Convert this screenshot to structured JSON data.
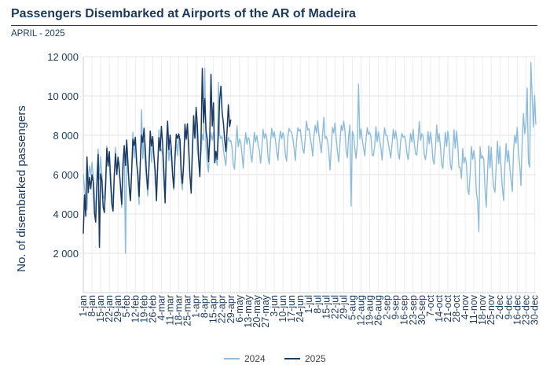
{
  "header": {
    "title": "Passengers Disembarked at Airports of the AR of Madeira",
    "subtitle": "APRIL - 2025"
  },
  "chart_data": {
    "type": "line",
    "title": "Passengers Disembarked at Airports of the AR of Madeira",
    "subtitle": "APRIL - 2025",
    "ylabel": "No. of disembarked passengers",
    "xlabel": "",
    "ylim": [
      0,
      12000
    ],
    "yticks": [
      2000,
      4000,
      6000,
      8000,
      10000,
      12000
    ],
    "ytick_labels": [
      "2 000",
      "4 000",
      "6 000",
      "8 000",
      "10 000",
      "12 000"
    ],
    "xticks": [
      "1-jan",
      "8-jan",
      "15-jan",
      "22-jan",
      "29-jan",
      "5-feb",
      "12-feb",
      "19-feb",
      "26-feb",
      "4-mar",
      "11-mar",
      "18-mar",
      "25-mar",
      "1-apr",
      "8-apr",
      "15-apr",
      "22-apr",
      "29-apr",
      "6-may",
      "13-may",
      "20-may",
      "27-may",
      "3-jun",
      "10-jun",
      "17-jun",
      "24-jun",
      "1-jul",
      "8-jul",
      "15-jul",
      "22-jul",
      "29-jul",
      "5-aug",
      "12-aug",
      "19-aug",
      "26-aug",
      "2-sep",
      "9-sep",
      "16-sep",
      "23-sep",
      "30-sep",
      "7-oct",
      "14-oct",
      "21-oct",
      "28-oct",
      "4-nov",
      "11-nov",
      "18-nov",
      "25-nov",
      "2-dec",
      "9-dec",
      "16-dec",
      "23-dec",
      "30-dec"
    ],
    "xtick_every_days": 7,
    "num_days_axis": 366,
    "grid": true,
    "legend_position": "bottom",
    "series": [
      {
        "name": "2024",
        "color": "#8bbcdb",
        "days": 366,
        "segments": [
          {
            "from": 0,
            "to": 40,
            "start": 5300,
            "end": 6200,
            "amp": 1500
          },
          {
            "from": 40,
            "to": 80,
            "start": 6200,
            "end": 6500,
            "amp": 1700
          },
          {
            "from": 80,
            "to": 92,
            "start": 6500,
            "end": 7200,
            "amp": 1900
          },
          {
            "from": 92,
            "to": 125,
            "start": 7200,
            "end": 7200,
            "amp": 1100
          },
          {
            "from": 125,
            "to": 195,
            "start": 7200,
            "end": 8000,
            "amp": 900
          },
          {
            "from": 195,
            "to": 215,
            "start": 7300,
            "end": 7900,
            "amp": 1100
          },
          {
            "from": 215,
            "to": 270,
            "start": 7600,
            "end": 7500,
            "amp": 800
          },
          {
            "from": 270,
            "to": 305,
            "start": 7500,
            "end": 7100,
            "amp": 1100
          },
          {
            "from": 305,
            "to": 345,
            "start": 6000,
            "end": 6000,
            "amp": 1500
          },
          {
            "from": 345,
            "to": 366,
            "start": 6500,
            "end": 8500,
            "amp": 1900
          }
        ],
        "peaks": [
          {
            "day": 98,
            "value": 11400
          },
          {
            "day": 109,
            "value": 10700
          },
          {
            "day": 222,
            "value": 10600
          },
          {
            "day": 216,
            "value": 4400
          },
          {
            "day": 319,
            "value": 3100
          },
          {
            "day": 361,
            "value": 11700
          },
          {
            "day": 358,
            "value": 10400
          },
          {
            "day": 366,
            "value": 6600
          },
          {
            "day": 47,
            "value": 9300
          },
          {
            "day": 34,
            "value": 2000
          }
        ]
      },
      {
        "name": "2025",
        "color": "#1b3a63",
        "days": 120,
        "segments": [
          {
            "from": 0,
            "to": 40,
            "start": 4500,
            "end": 6300,
            "amp": 1700
          },
          {
            "from": 40,
            "to": 80,
            "start": 6500,
            "end": 6800,
            "amp": 1900
          },
          {
            "from": 80,
            "to": 100,
            "start": 6800,
            "end": 8000,
            "amp": 2100
          },
          {
            "from": 100,
            "to": 120,
            "start": 8200,
            "end": 8000,
            "amp": 1500
          }
        ],
        "peaks": [
          {
            "day": 0,
            "value": 3000
          },
          {
            "day": 3,
            "value": 6900
          },
          {
            "day": 13,
            "value": 2300
          },
          {
            "day": 96,
            "value": 11400
          },
          {
            "day": 103,
            "value": 11100
          },
          {
            "day": 111,
            "value": 10500
          },
          {
            "day": 106,
            "value": 6600
          }
        ]
      }
    ]
  }
}
